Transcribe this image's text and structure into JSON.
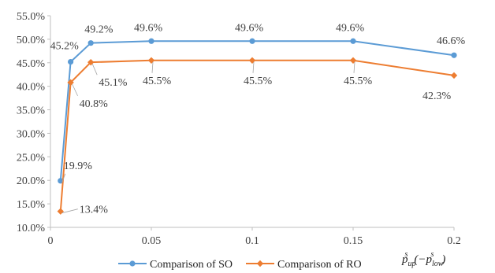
{
  "chart_data": {
    "type": "line",
    "x": [
      0.005,
      0.01,
      0.02,
      0.05,
      0.1,
      0.15,
      0.2
    ],
    "xlim": [
      0,
      0.2
    ],
    "xticks": [
      0,
      0.05,
      0.1,
      0.15,
      0.2
    ],
    "xtick_labels": [
      "0",
      "0.05",
      "0.1",
      "0.15",
      "0.2"
    ],
    "ylim": [
      10,
      55
    ],
    "yticks": [
      10,
      15,
      20,
      25,
      30,
      35,
      40,
      45,
      50,
      55
    ],
    "ytick_labels": [
      "10.0%",
      "15.0%",
      "20.0%",
      "25.0%",
      "30.0%",
      "35.0%",
      "40.0%",
      "45.0%",
      "50.0%",
      "55.0%"
    ],
    "xlabel": {
      "base_1": "p",
      "sub_1": "up",
      "sup_1": "s",
      "middle": "(−",
      "base_2": "p",
      "sub_2": "low",
      "sup_2": "s",
      "end": ")"
    },
    "grid": false,
    "legend_position": "bottom",
    "series": [
      {
        "name": "Comparison of SO",
        "color": "#5b9bd5",
        "values": [
          19.9,
          45.2,
          49.2,
          49.6,
          49.6,
          49.6,
          46.6
        ],
        "labels": [
          "19.9%",
          "45.2%",
          "49.2%",
          "49.6%",
          "49.6%",
          "49.6%",
          "46.6%"
        ]
      },
      {
        "name": "Comparison of RO",
        "color": "#ed7d31",
        "values": [
          13.4,
          40.8,
          45.1,
          45.5,
          45.5,
          45.5,
          42.3
        ],
        "labels": [
          "13.4%",
          "40.8%",
          "45.1%",
          "45.5%",
          "45.5%",
          "45.5%",
          "42.3%"
        ]
      }
    ]
  }
}
